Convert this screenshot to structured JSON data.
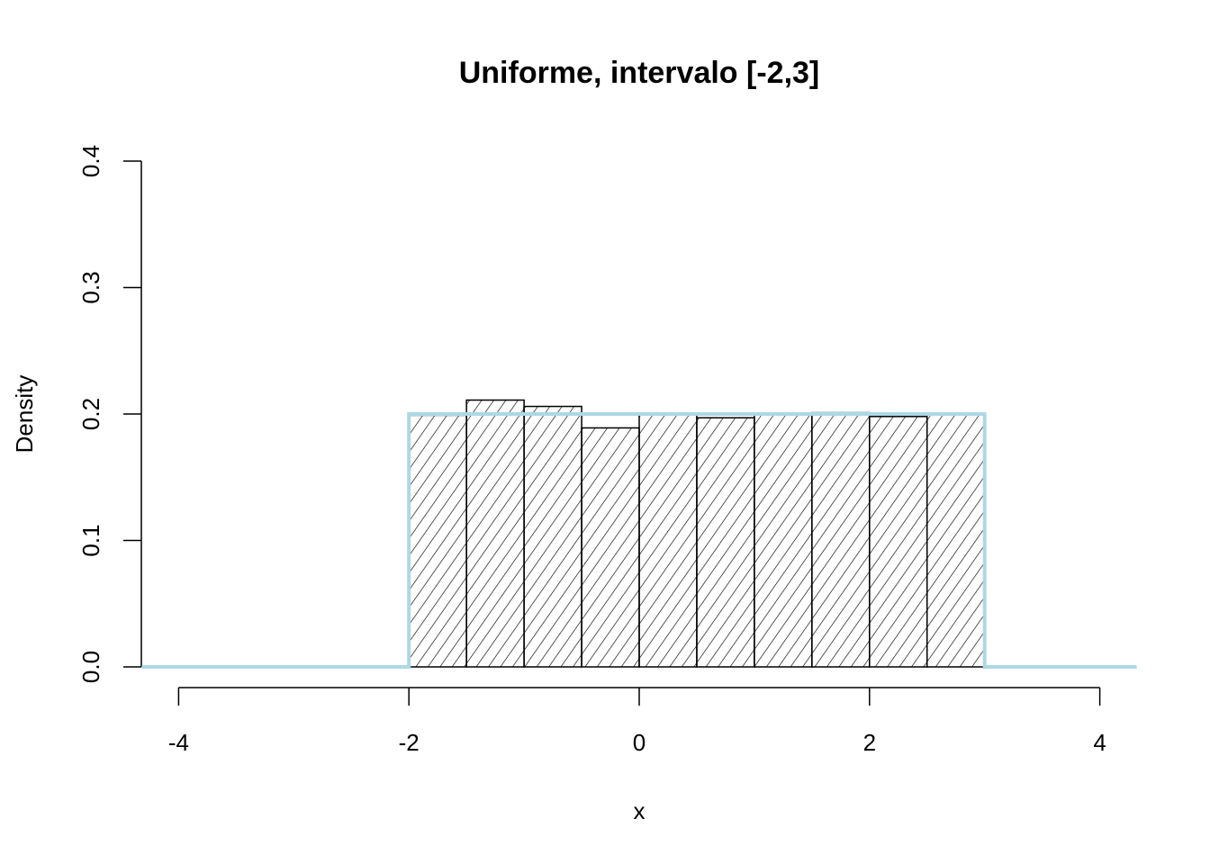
{
  "chart_data": {
    "type": "bar",
    "title": "Uniforme, intervalo [-2,3]",
    "xlabel": "x",
    "ylabel": "Density",
    "xlim": [
      -4.32,
      4.32
    ],
    "ylim": [
      0,
      0.4
    ],
    "x_ticks": [
      -4,
      -2,
      0,
      2,
      4
    ],
    "x_tick_labels": [
      "-4",
      "-2",
      "0",
      "2",
      "4"
    ],
    "y_ticks": [
      0,
      0.1,
      0.2,
      0.3,
      0.4
    ],
    "y_tick_labels": [
      "0.0",
      "0.1",
      "0.2",
      "0.3",
      "0.4"
    ],
    "grid": false,
    "bins": [
      {
        "from": -2.0,
        "to": -1.5,
        "density": 0.199
      },
      {
        "from": -1.5,
        "to": -1.0,
        "density": 0.211
      },
      {
        "from": -1.0,
        "to": -0.5,
        "density": 0.206
      },
      {
        "from": -0.5,
        "to": 0.0,
        "density": 0.189
      },
      {
        "from": 0.0,
        "to": 0.5,
        "density": 0.2
      },
      {
        "from": 0.5,
        "to": 1.0,
        "density": 0.197
      },
      {
        "from": 1.0,
        "to": 1.5,
        "density": 0.2
      },
      {
        "from": 1.5,
        "to": 2.0,
        "density": 0.201
      },
      {
        "from": 2.0,
        "to": 2.5,
        "density": 0.198
      },
      {
        "from": 2.5,
        "to": 3.0,
        "density": 0.2
      }
    ],
    "bar_fill": "hatched",
    "density_line": {
      "color": "#ADD8E6",
      "points": [
        [
          -4.32,
          0
        ],
        [
          -2,
          0
        ],
        [
          -2,
          0.2
        ],
        [
          3,
          0.2
        ],
        [
          3,
          0
        ],
        [
          4.32,
          0
        ]
      ]
    }
  }
}
